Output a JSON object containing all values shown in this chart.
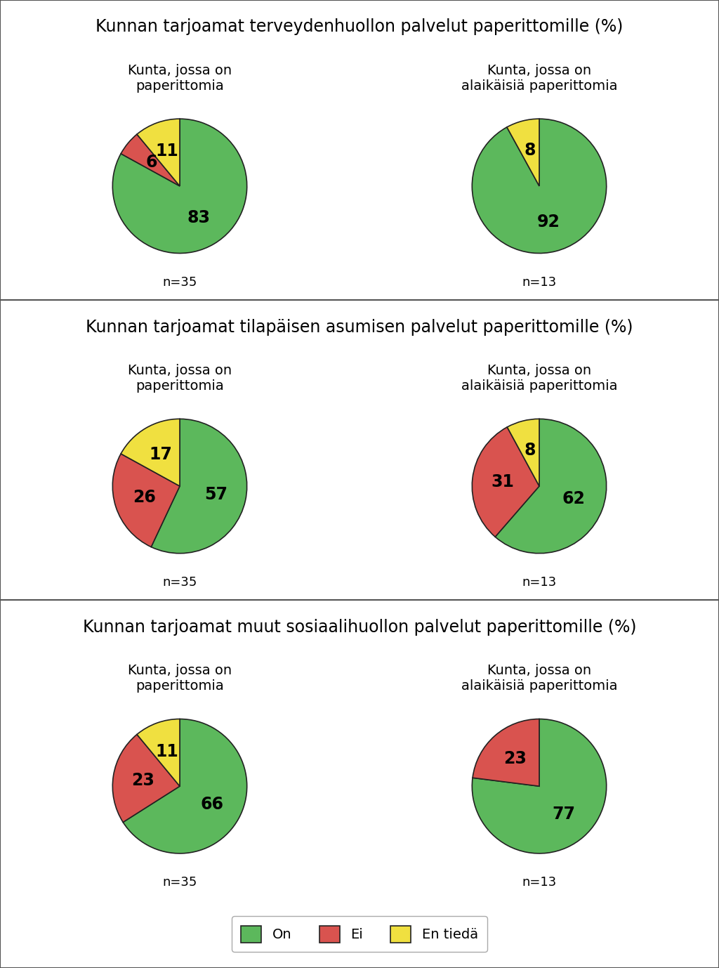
{
  "sections": [
    {
      "title": "Kunnan tarjoamat terveydenhuollon palvelut paperittomille (%)",
      "charts": [
        {
          "subtitle": "Kunta, jossa on\npaperittomia",
          "n": "n=35",
          "values": [
            83,
            6,
            11
          ],
          "labels": [
            "83",
            "6",
            "11"
          ]
        },
        {
          "subtitle": "Kunta, jossa on\nalaikäisiä paperittomia",
          "n": "n=13",
          "values": [
            92,
            0,
            8
          ],
          "labels": [
            "92",
            "",
            "8"
          ]
        }
      ]
    },
    {
      "title": "Kunnan tarjoamat tilapäisen asumisen palvelut paperittomille (%)",
      "charts": [
        {
          "subtitle": "Kunta, jossa on\npaperittomia",
          "n": "n=35",
          "values": [
            57,
            26,
            17
          ],
          "labels": [
            "57",
            "26",
            "17"
          ]
        },
        {
          "subtitle": "Kunta, jossa on\nalaikäisiä paperittomia",
          "n": "n=13",
          "values": [
            62,
            31,
            8
          ],
          "labels": [
            "62",
            "31",
            "8"
          ]
        }
      ]
    },
    {
      "title": "Kunnan tarjoamat muut sosiaalihuollon palvelut paperittomille (%)",
      "charts": [
        {
          "subtitle": "Kunta, jossa on\npaperittomia",
          "n": "n=35",
          "values": [
            66,
            23,
            11
          ],
          "labels": [
            "66",
            "23",
            "11"
          ]
        },
        {
          "subtitle": "Kunta, jossa on\nalaikäisiä paperittomia",
          "n": "n=13",
          "values": [
            77,
            23,
            0
          ],
          "labels": [
            "77",
            "23",
            ""
          ]
        }
      ]
    }
  ],
  "colors": [
    "#5cb85c",
    "#d9534f",
    "#f0e040"
  ],
  "legend_labels": [
    "On",
    "Ei",
    "En tiedä"
  ],
  "edge_color": "#222222",
  "background_color": "#ffffff",
  "title_fontsize": 17,
  "subtitle_fontsize": 14,
  "label_fontsize": 17,
  "n_fontsize": 13,
  "legend_fontsize": 14
}
